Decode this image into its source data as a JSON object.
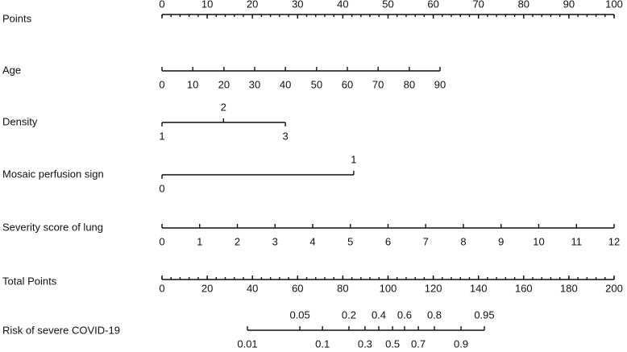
{
  "chart_data": {
    "type": "nomogram",
    "points_axis": {
      "label": "Points",
      "xlim": [
        0,
        100
      ],
      "xticks": [
        0,
        10,
        20,
        30,
        40,
        50,
        60,
        70,
        80,
        90,
        100
      ],
      "minor_step": 2,
      "labels": "above"
    },
    "variables": [
      {
        "label": "Age",
        "ticks": [
          0,
          10,
          20,
          30,
          40,
          50,
          60,
          70,
          80,
          90
        ],
        "tick_points": [
          0,
          6.8,
          13.7,
          20.5,
          27.3,
          34.2,
          41,
          47.8,
          54.7,
          61.5
        ],
        "labels": "below"
      },
      {
        "label": "Density",
        "ticks": [
          1,
          2,
          3
        ],
        "tick_points": [
          0,
          13.6,
          27.3
        ],
        "labels": "alternate"
      },
      {
        "label": "Mosaic perfusion sign",
        "ticks": [
          0,
          1
        ],
        "tick_points": [
          0,
          42.4
        ],
        "labels": "alternate"
      },
      {
        "label": "Severity score of lung",
        "ticks": [
          0,
          1,
          2,
          3,
          4,
          5,
          6,
          7,
          8,
          9,
          10,
          11,
          12
        ],
        "tick_points": [
          0,
          8.33,
          16.67,
          25,
          33.33,
          41.67,
          50,
          58.33,
          66.67,
          75,
          83.33,
          91.67,
          100
        ],
        "labels": "below"
      }
    ],
    "total_axis": {
      "label": "Total Points",
      "xlim": [
        0,
        200
      ],
      "xticks": [
        0,
        20,
        40,
        60,
        80,
        100,
        120,
        140,
        160,
        180,
        200
      ],
      "minor_step": 4,
      "labels": "below"
    },
    "risk": {
      "label": "Risk of severe COVID-19",
      "ticks": [
        0.01,
        0.05,
        0.1,
        0.2,
        0.3,
        0.4,
        0.5,
        0.6,
        0.7,
        0.8,
        0.9,
        0.95
      ],
      "tick_total_points": [
        37.8,
        61,
        71,
        82.7,
        89.8,
        95.9,
        102,
        107.3,
        113.4,
        120.5,
        132.3,
        142.6
      ],
      "labels": "alternate"
    }
  }
}
